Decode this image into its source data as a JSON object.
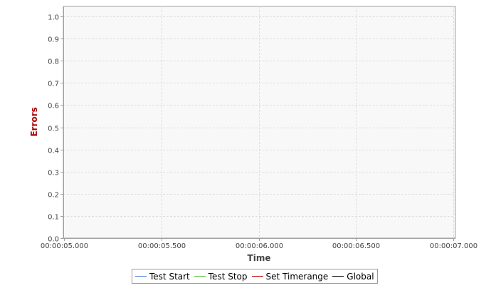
{
  "chart_data": {
    "type": "line",
    "title": "",
    "xlabel": "Time",
    "ylabel": "Errors",
    "x_ticks": [
      "00:00:05.000",
      "00:00:05.500",
      "00:00:06.000",
      "00:00:06.500",
      "00:00:07.000"
    ],
    "y_ticks": [
      "0.0",
      "0.1",
      "0.2",
      "0.3",
      "0.4",
      "0.5",
      "0.6",
      "0.7",
      "0.8",
      "0.9",
      "1.0"
    ],
    "xlim": [
      "00:00:05.000",
      "00:00:07.000"
    ],
    "ylim": [
      0,
      1.0
    ],
    "grid": true,
    "legend_position": "bottom",
    "series": [
      {
        "name": "Test Start",
        "color": "#4a7fd4",
        "values": []
      },
      {
        "name": "Test Stop",
        "color": "#5bbf3a",
        "values": []
      },
      {
        "name": "Set Timerange",
        "color": "#c00000",
        "values": []
      },
      {
        "name": "Global",
        "color": "#000000",
        "values": []
      }
    ],
    "colors": {
      "plot_background": "#f8f8f8",
      "gridline": "#dedede",
      "axis_line": "#a0a0a0",
      "ylabel": "#aa0000",
      "xlabel": "#444444",
      "tick_label": "#444444"
    }
  }
}
